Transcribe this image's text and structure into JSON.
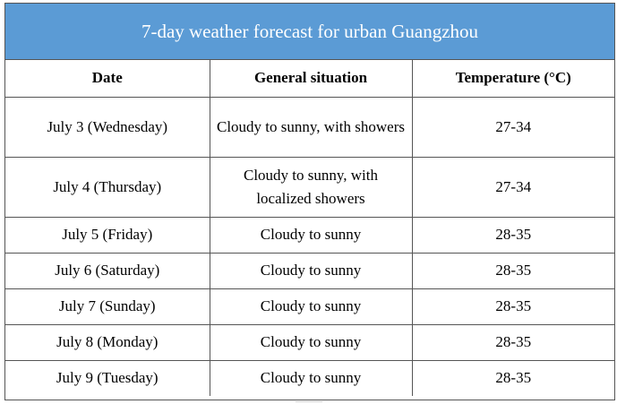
{
  "title": "7-day weather forecast for urban Guangzhou",
  "headers": {
    "date": "Date",
    "situation": "General situation",
    "temperature": "Temperature (°C)"
  },
  "rows": [
    {
      "date": "July 3 (Wednesday)",
      "situation": "Cloudy to sunny, with showers",
      "temperature": "27-34"
    },
    {
      "date": "July 4 (Thursday)",
      "situation": "Cloudy to sunny, with localized showers",
      "temperature": "27-34"
    },
    {
      "date": "July 5 (Friday)",
      "situation": "Cloudy to sunny",
      "temperature": "28-35"
    },
    {
      "date": "July 6 (Saturday)",
      "situation": "Cloudy to sunny",
      "temperature": "28-35"
    },
    {
      "date": "July 7 (Sunday)",
      "situation": "Cloudy to sunny",
      "temperature": "28-35"
    },
    {
      "date": "July 8 (Monday)",
      "situation": "Cloudy to sunny",
      "temperature": "28-35"
    },
    {
      "date": "July 9 (Tuesday)",
      "situation": "Cloudy to sunny",
      "temperature": "28-35"
    }
  ],
  "colors": {
    "banner": "#5b9bd5",
    "banner_text": "#ffffff",
    "border": "#555555"
  }
}
